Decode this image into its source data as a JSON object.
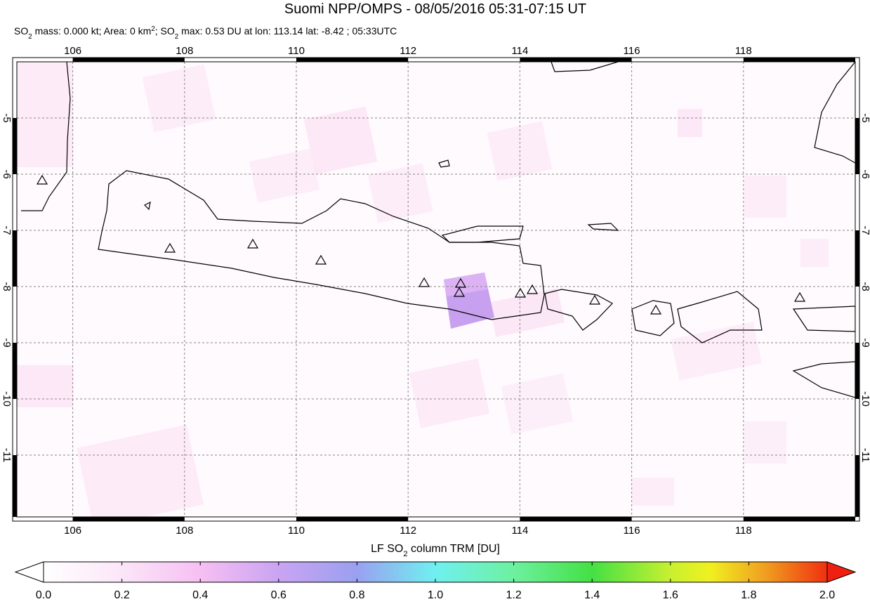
{
  "title": "Suomi NPP/OMPS - 08/05/2016 05:31-07:15 UT",
  "subtitle_parts": [
    {
      "text": "SO"
    },
    {
      "text": "2",
      "sub": true
    },
    {
      "text": " mass: 0.000 kt; Area: 0 km"
    },
    {
      "text": "2",
      "sup": true
    },
    {
      "text": "; SO"
    },
    {
      "text": "2",
      "sub": true
    },
    {
      "text": " max: 0.53 DU at lon: 113.14 lat: -8.42 ; 05:33UTC"
    }
  ],
  "map": {
    "lon_range": [
      105,
      120
    ],
    "lat_range": [
      -4,
      -12.1
    ],
    "lon_ticks": [
      106,
      108,
      110,
      112,
      114,
      116,
      118
    ],
    "lat_ticks": [
      -5,
      -6,
      -7,
      -8,
      -9,
      -10,
      -11
    ]
  },
  "colorbar": {
    "label_parts": [
      {
        "text": "LF SO"
      },
      {
        "text": "2",
        "sub": true
      },
      {
        "text": " column TRM [DU]"
      }
    ],
    "range": [
      0,
      2
    ],
    "ticks": [
      {
        "value": 0,
        "label": "0.0"
      },
      {
        "value": 0.2,
        "label": "0.2"
      },
      {
        "value": 0.4,
        "label": "0.4"
      },
      {
        "value": 0.6,
        "label": "0.6"
      },
      {
        "value": 0.8,
        "label": "0.8"
      },
      {
        "value": 1,
        "label": "1.0"
      },
      {
        "value": 1.2,
        "label": "1.2"
      },
      {
        "value": 1.4,
        "label": "1.4"
      },
      {
        "value": 1.6,
        "label": "1.6"
      },
      {
        "value": 1.8,
        "label": "1.8"
      },
      {
        "value": 2,
        "label": "2.0"
      }
    ]
  }
}
